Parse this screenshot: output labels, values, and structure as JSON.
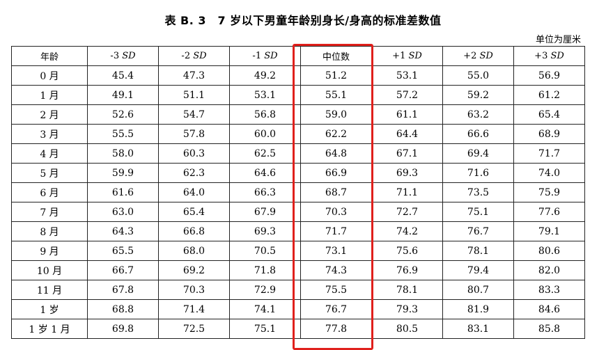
{
  "title": "表 B. 3　7 岁以下男童年龄别身长/身高的标准差数值",
  "unit": "单位为厘米",
  "columns": [
    {
      "prefix": "年龄",
      "suffix": ""
    },
    {
      "prefix": "-3 ",
      "suffix": "SD"
    },
    {
      "prefix": "-2 ",
      "suffix": "SD"
    },
    {
      "prefix": "-1 ",
      "suffix": "SD"
    },
    {
      "prefix": "中位数",
      "suffix": ""
    },
    {
      "prefix": "+1 ",
      "suffix": "SD"
    },
    {
      "prefix": "+2 ",
      "suffix": "SD"
    },
    {
      "prefix": "+3 ",
      "suffix": "SD"
    }
  ],
  "rows": [
    [
      "0 月",
      "45.4",
      "47.3",
      "49.2",
      "51.2",
      "53.1",
      "55.0",
      "56.9"
    ],
    [
      "1 月",
      "49.1",
      "51.1",
      "53.1",
      "55.1",
      "57.2",
      "59.2",
      "61.2"
    ],
    [
      "2 月",
      "52.6",
      "54.7",
      "56.8",
      "59.0",
      "61.1",
      "63.2",
      "65.4"
    ],
    [
      "3 月",
      "55.5",
      "57.8",
      "60.0",
      "62.2",
      "64.4",
      "66.6",
      "68.9"
    ],
    [
      "4 月",
      "58.0",
      "60.3",
      "62.5",
      "64.8",
      "67.1",
      "69.4",
      "71.7"
    ],
    [
      "5 月",
      "59.9",
      "62.3",
      "64.6",
      "66.9",
      "69.3",
      "71.6",
      "74.0"
    ],
    [
      "6 月",
      "61.6",
      "64.0",
      "66.3",
      "68.7",
      "71.1",
      "73.5",
      "75.9"
    ],
    [
      "7 月",
      "63.0",
      "65.4",
      "67.9",
      "70.3",
      "72.7",
      "75.1",
      "77.6"
    ],
    [
      "8 月",
      "64.3",
      "66.8",
      "69.3",
      "71.7",
      "74.2",
      "76.7",
      "79.1"
    ],
    [
      "9 月",
      "65.5",
      "68.0",
      "70.5",
      "73.1",
      "75.6",
      "78.1",
      "80.6"
    ],
    [
      "10 月",
      "66.7",
      "69.2",
      "71.8",
      "74.3",
      "76.9",
      "79.4",
      "82.0"
    ],
    [
      "11 月",
      "67.8",
      "70.3",
      "72.9",
      "75.5",
      "78.1",
      "80.7",
      "83.3"
    ],
    [
      "1 岁",
      "68.8",
      "71.4",
      "74.1",
      "76.7",
      "79.3",
      "81.9",
      "84.6"
    ],
    [
      "1 岁 1 月",
      "69.8",
      "72.5",
      "75.1",
      "77.8",
      "80.5",
      "83.1",
      "85.8"
    ]
  ],
  "highlight_color": "#e0201c"
}
